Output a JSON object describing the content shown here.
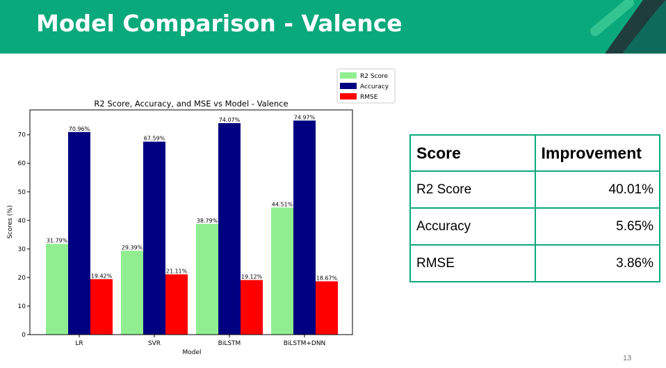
{
  "slide": {
    "title": "Model Comparison - Valence",
    "page_number": "13",
    "accent_color": "#0aa97c"
  },
  "chart_data": {
    "type": "bar",
    "title": "R2 Score, Accuracy, and MSE vs Model - Valence",
    "xlabel": "Model",
    "ylabel": "Scores (%)",
    "categories": [
      "LR",
      "SVR",
      "BiLSTM",
      "BiLSTM+DNN"
    ],
    "series": [
      {
        "name": "R2 Score",
        "color": "#90ee90",
        "values": [
          31.79,
          29.39,
          38.79,
          44.51
        ],
        "labels": [
          "31.79%",
          "29.39%",
          "38.79%",
          "44.51%"
        ]
      },
      {
        "name": "Accuracy",
        "color": "#000080",
        "values": [
          70.96,
          67.59,
          74.07,
          74.97
        ],
        "labels": [
          "70.96%",
          "67.59%",
          "74.07%",
          "74.97%"
        ]
      },
      {
        "name": "RMSE",
        "color": "#ff0000",
        "values": [
          19.42,
          21.11,
          19.12,
          18.67
        ],
        "labels": [
          "19.42%",
          "21.11%",
          "19.12%",
          "18.67%"
        ]
      }
    ],
    "yticks": [
      0,
      10,
      20,
      30,
      40,
      50,
      60,
      70
    ],
    "ylim": [
      0,
      78.7
    ],
    "legend": "top-right, outside"
  },
  "table": {
    "headers": [
      "Score",
      "Improvement"
    ],
    "rows": [
      {
        "label": "R2 Score",
        "value": "40.01%"
      },
      {
        "label": "Accuracy",
        "value": "5.65%"
      },
      {
        "label": "RMSE",
        "value": "3.86%"
      }
    ]
  }
}
